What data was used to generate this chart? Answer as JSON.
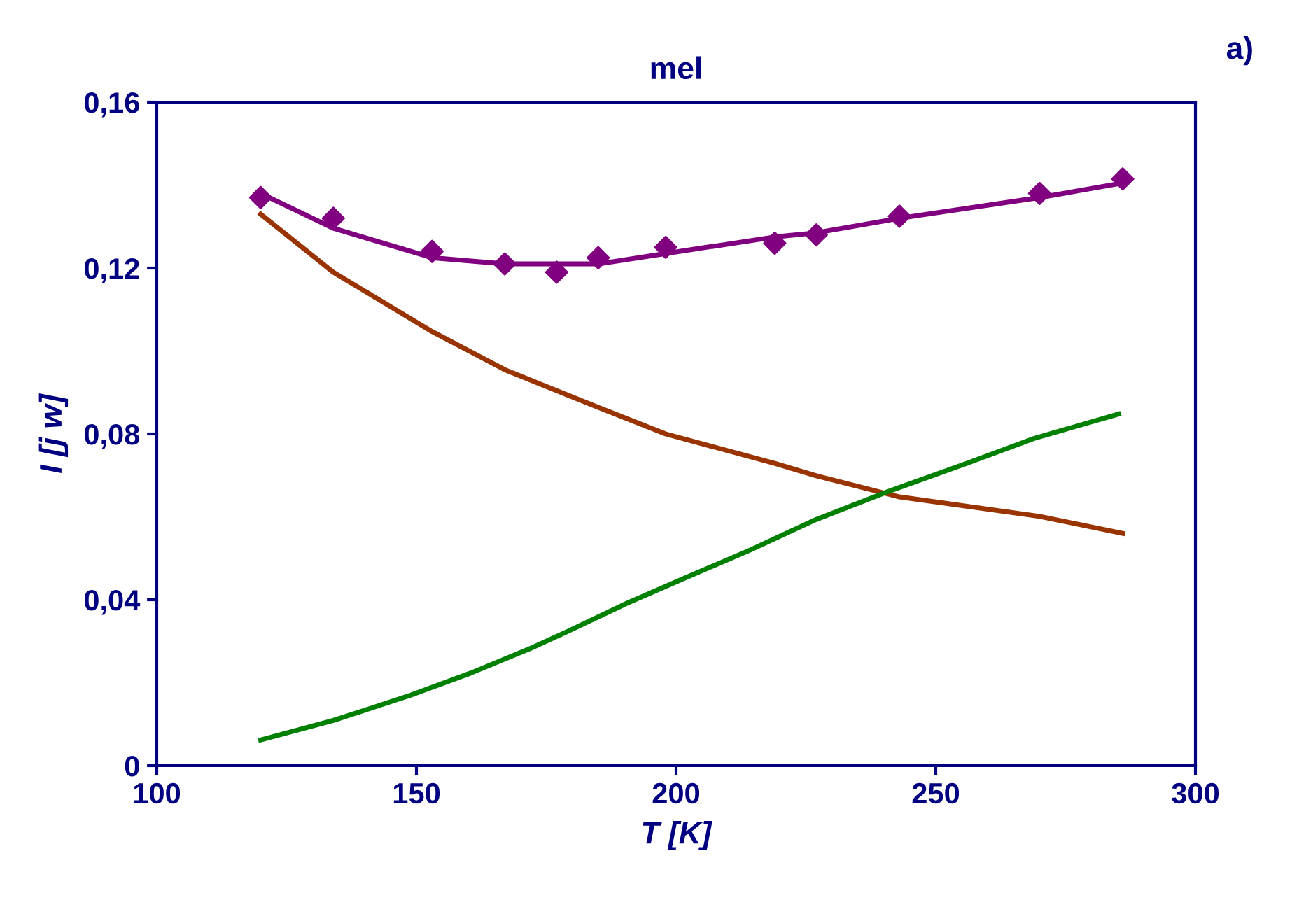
{
  "chart_data": {
    "type": "line",
    "title": "mel",
    "xlabel": "T [K]",
    "ylabel": "I [j w]",
    "annotations": [
      "a)"
    ],
    "xlim": [
      100,
      300
    ],
    "xticks": [
      100,
      150,
      200,
      250,
      300
    ],
    "ylim": [
      0,
      0.16
    ],
    "yticks": [
      {
        "value": 0,
        "label": "0"
      },
      {
        "value": 0.04,
        "label": "0,04"
      },
      {
        "value": 0.08,
        "label": "0,08"
      },
      {
        "value": 0.12,
        "label": "0,12"
      },
      {
        "value": 0.16,
        "label": "0,16"
      }
    ],
    "grid": false,
    "legend": false,
    "series": [
      {
        "type": "scatter",
        "marker": "diamond",
        "color": "#800080",
        "x": [
          120,
          134,
          153,
          167,
          177,
          185,
          198,
          219,
          227,
          243,
          270,
          286
        ],
        "values": [
          0.137,
          0.132,
          0.124,
          0.121,
          0.119,
          0.1225,
          0.125,
          0.126,
          0.128,
          0.1325,
          0.138,
          0.1415
        ]
      },
      {
        "color": "#800080",
        "x": [
          120,
          134,
          153,
          167,
          185,
          198,
          219,
          227,
          243,
          270,
          286
        ],
        "values": [
          0.138,
          0.1296,
          0.1225,
          0.121,
          0.121,
          0.1235,
          0.1275,
          0.1285,
          0.132,
          0.137,
          0.1405
        ]
      },
      {
        "color": "#993300",
        "x": [
          120,
          134,
          153,
          167,
          185,
          198,
          219,
          227,
          243,
          270,
          286
        ],
        "values": [
          0.133,
          0.119,
          0.1047,
          0.0955,
          0.0864,
          0.08,
          0.0729,
          0.0699,
          0.0648,
          0.0601,
          0.056
        ]
      },
      {
        "color": "#008000",
        "x": [
          120,
          134,
          148.9,
          160.4,
          172.2,
          179,
          190.6,
          202,
          214.3,
          226.5,
          240.6,
          256,
          268.9,
          285.2
        ],
        "values": [
          0.0062,
          0.0109,
          0.017,
          0.0223,
          0.0284,
          0.0323,
          0.0392,
          0.0454,
          0.052,
          0.0591,
          0.066,
          0.0729,
          0.0789,
          0.0848
        ]
      }
    ]
  }
}
